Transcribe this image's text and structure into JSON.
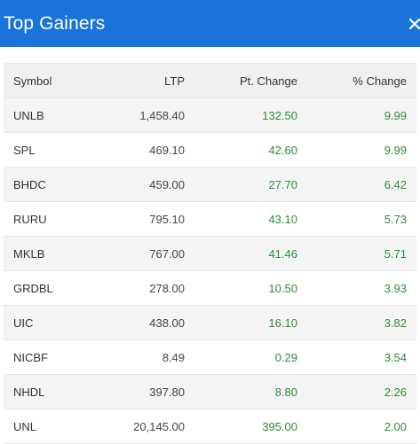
{
  "header": {
    "title": "Top Gainers",
    "close_icon": "close-icon"
  },
  "table": {
    "columns": [
      "Symbol",
      "LTP",
      "Pt. Change",
      "% Change"
    ],
    "rows": [
      {
        "symbol": "UNLB",
        "ltp": "1,458.40",
        "pt_change": "132.50",
        "pct_change": "9.99"
      },
      {
        "symbol": "SPL",
        "ltp": "469.10",
        "pt_change": "42.60",
        "pct_change": "9.99"
      },
      {
        "symbol": "BHDC",
        "ltp": "459.00",
        "pt_change": "27.70",
        "pct_change": "6.42"
      },
      {
        "symbol": "RURU",
        "ltp": "795.10",
        "pt_change": "43.10",
        "pct_change": "5.73"
      },
      {
        "symbol": "MKLB",
        "ltp": "767.00",
        "pt_change": "41.46",
        "pct_change": "5.71"
      },
      {
        "symbol": "GRDBL",
        "ltp": "278.00",
        "pt_change": "10.50",
        "pct_change": "3.93"
      },
      {
        "symbol": "UIC",
        "ltp": "438.00",
        "pt_change": "16.10",
        "pct_change": "3.82"
      },
      {
        "symbol": "NICBF",
        "ltp": "8.49",
        "pt_change": "0.29",
        "pct_change": "3.54"
      },
      {
        "symbol": "NHDL",
        "ltp": "397.80",
        "pt_change": "8.80",
        "pct_change": "2.26"
      },
      {
        "symbol": "UNL",
        "ltp": "20,145.00",
        "pt_change": "395.00",
        "pct_change": "2.00"
      }
    ]
  },
  "colors": {
    "header_bg": "#1a73d8",
    "positive": "#2e8b3a"
  }
}
